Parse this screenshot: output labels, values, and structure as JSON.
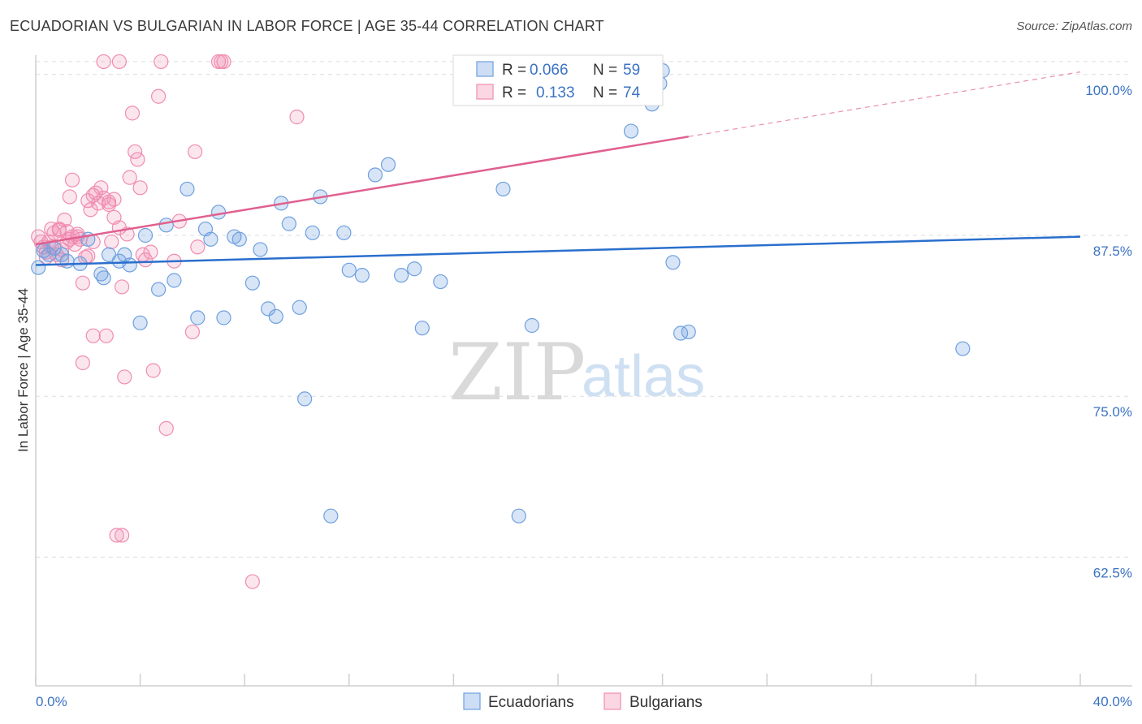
{
  "title": "ECUADORIAN VS BULGARIAN IN LABOR FORCE | AGE 35-44 CORRELATION CHART",
  "source": "Source: ZipAtlas.com",
  "watermark": {
    "zip": "ZIP",
    "atlas": "atlas"
  },
  "colors": {
    "blue": "#6fa0e0",
    "blue_fill": "rgba(111,160,224,0.28)",
    "blue_line": "#2a6fcd",
    "pink": "#f08cb0",
    "pink_fill": "rgba(240,140,176,0.22)",
    "pink_line": "#e0608f",
    "tick": "#3b73c4"
  },
  "legend": {
    "r_label": "R =",
    "n_label": "N =",
    "ecuadorians": {
      "r": "0.066",
      "n": "59"
    },
    "bulgarians": {
      "r": "0.133",
      "n": "74"
    }
  },
  "chart_data": {
    "type": "scatter",
    "title": "ECUADORIAN VS BULGARIAN IN LABOR FORCE | AGE 35-44 CORRELATION CHART",
    "xlabel": "",
    "ylabel": "In Labor Force | Age 35-44",
    "xlim": [
      0,
      40
    ],
    "ylim": [
      52.5,
      101.5
    ],
    "x_tick_labels": {
      "min": "0.0%",
      "max": "40.0%"
    },
    "y_ticks": [
      {
        "value": 100.0,
        "label": "100.0%"
      },
      {
        "value": 87.5,
        "label": "87.5%"
      },
      {
        "value": 75.0,
        "label": "75.0%"
      },
      {
        "value": 62.5,
        "label": "62.5%"
      }
    ],
    "series": [
      {
        "name": "Ecuadorians",
        "color": "blue",
        "trend": {
          "x0": 0,
          "y0": 85.2,
          "x1": 40,
          "y1": 87.4,
          "dash_from": 40
        },
        "points": [
          [
            0.1,
            85.0
          ],
          [
            0.5,
            86.0
          ],
          [
            0.7,
            86.5
          ],
          [
            1.0,
            86.0
          ],
          [
            1.2,
            85.5
          ],
          [
            1.7,
            85.3
          ],
          [
            2.0,
            87.2
          ],
          [
            2.5,
            84.5
          ],
          [
            2.6,
            84.2
          ],
          [
            2.8,
            86.0
          ],
          [
            3.2,
            85.5
          ],
          [
            3.4,
            86.0
          ],
          [
            3.6,
            85.2
          ],
          [
            4.0,
            80.7
          ],
          [
            4.2,
            87.5
          ],
          [
            4.7,
            83.3
          ],
          [
            5.0,
            88.3
          ],
          [
            5.3,
            84.0
          ],
          [
            5.8,
            91.1
          ],
          [
            6.2,
            81.1
          ],
          [
            6.5,
            88.0
          ],
          [
            6.7,
            87.2
          ],
          [
            7.0,
            89.3
          ],
          [
            7.2,
            81.1
          ],
          [
            7.6,
            87.4
          ],
          [
            7.8,
            87.2
          ],
          [
            8.3,
            83.8
          ],
          [
            8.6,
            86.4
          ],
          [
            8.9,
            81.8
          ],
          [
            9.2,
            81.2
          ],
          [
            9.4,
            90.0
          ],
          [
            9.7,
            88.4
          ],
          [
            10.1,
            81.9
          ],
          [
            10.3,
            74.8
          ],
          [
            10.6,
            87.7
          ],
          [
            10.9,
            90.5
          ],
          [
            11.3,
            65.7
          ],
          [
            11.8,
            87.7
          ],
          [
            12.0,
            84.8
          ],
          [
            12.5,
            84.4
          ],
          [
            13.0,
            92.2
          ],
          [
            13.5,
            93.0
          ],
          [
            14.0,
            84.4
          ],
          [
            14.5,
            84.9
          ],
          [
            14.8,
            80.3
          ],
          [
            15.5,
            83.9
          ],
          [
            17.9,
            91.1
          ],
          [
            18.5,
            65.7
          ],
          [
            19.0,
            80.5
          ],
          [
            21.8,
            100.5
          ],
          [
            22.8,
            95.6
          ],
          [
            23.6,
            97.7
          ],
          [
            23.9,
            99.3
          ],
          [
            24.0,
            100.3
          ],
          [
            24.4,
            85.4
          ],
          [
            24.7,
            79.9
          ],
          [
            25.0,
            80.0
          ],
          [
            35.5,
            78.7
          ],
          [
            0.3,
            86.3
          ]
        ]
      },
      {
        "name": "Bulgarians",
        "color": "pink",
        "trend": {
          "x0": 0,
          "y0": 86.8,
          "x1": 40,
          "y1": 100.2,
          "dash_from": 25.0
        },
        "points": [
          [
            0.1,
            87.4
          ],
          [
            0.2,
            87.0
          ],
          [
            0.3,
            86.6
          ],
          [
            0.4,
            86.2
          ],
          [
            0.5,
            87.0
          ],
          [
            0.6,
            86.6
          ],
          [
            0.7,
            87.7
          ],
          [
            0.8,
            86.0
          ],
          [
            0.9,
            88.0
          ],
          [
            1.0,
            86.4
          ],
          [
            1.1,
            88.7
          ],
          [
            1.2,
            87.0
          ],
          [
            1.3,
            87.2
          ],
          [
            1.3,
            90.5
          ],
          [
            1.4,
            91.8
          ],
          [
            1.4,
            87.4
          ],
          [
            1.5,
            86.8
          ],
          [
            1.6,
            87.4
          ],
          [
            1.7,
            87.2
          ],
          [
            1.8,
            83.8
          ],
          [
            1.8,
            77.6
          ],
          [
            1.9,
            85.8
          ],
          [
            2.0,
            90.2
          ],
          [
            2.1,
            89.5
          ],
          [
            2.2,
            90.6
          ],
          [
            2.2,
            79.7
          ],
          [
            2.3,
            90.8
          ],
          [
            2.4,
            90.0
          ],
          [
            2.5,
            91.2
          ],
          [
            2.6,
            90.4
          ],
          [
            2.7,
            79.7
          ],
          [
            2.8,
            90.1
          ],
          [
            2.9,
            87.0
          ],
          [
            3.0,
            90.3
          ],
          [
            3.1,
            64.2
          ],
          [
            3.2,
            88.1
          ],
          [
            3.3,
            83.5
          ],
          [
            3.3,
            64.2
          ],
          [
            3.4,
            76.5
          ],
          [
            3.5,
            87.6
          ],
          [
            3.6,
            92.0
          ],
          [
            3.7,
            97.0
          ],
          [
            3.8,
            94.0
          ],
          [
            3.9,
            93.4
          ],
          [
            4.0,
            91.2
          ],
          [
            4.1,
            86.0
          ],
          [
            4.2,
            85.6
          ],
          [
            4.4,
            86.2
          ],
          [
            4.5,
            77.0
          ],
          [
            4.7,
            98.3
          ],
          [
            5.0,
            72.5
          ],
          [
            5.3,
            85.5
          ],
          [
            5.5,
            88.6
          ],
          [
            6.0,
            80.0
          ],
          [
            6.1,
            94.0
          ],
          [
            6.2,
            86.6
          ],
          [
            7.0,
            101.0
          ],
          [
            7.1,
            101.0
          ],
          [
            7.2,
            101.0
          ],
          [
            8.3,
            60.6
          ],
          [
            10.0,
            96.7
          ],
          [
            2.0,
            85.9
          ],
          [
            1.2,
            87.8
          ],
          [
            0.9,
            87.9
          ],
          [
            1.6,
            87.6
          ],
          [
            2.6,
            101.0
          ],
          [
            3.2,
            101.0
          ],
          [
            4.8,
            101.0
          ],
          [
            0.4,
            85.8
          ],
          [
            2.2,
            87.0
          ],
          [
            1.0,
            85.6
          ],
          [
            0.6,
            88.0
          ],
          [
            2.8,
            89.9
          ],
          [
            3.0,
            88.9
          ]
        ]
      }
    ]
  },
  "bottom_legend": {
    "ecuadorians": "Ecuadorians",
    "bulgarians": "Bulgarians"
  }
}
